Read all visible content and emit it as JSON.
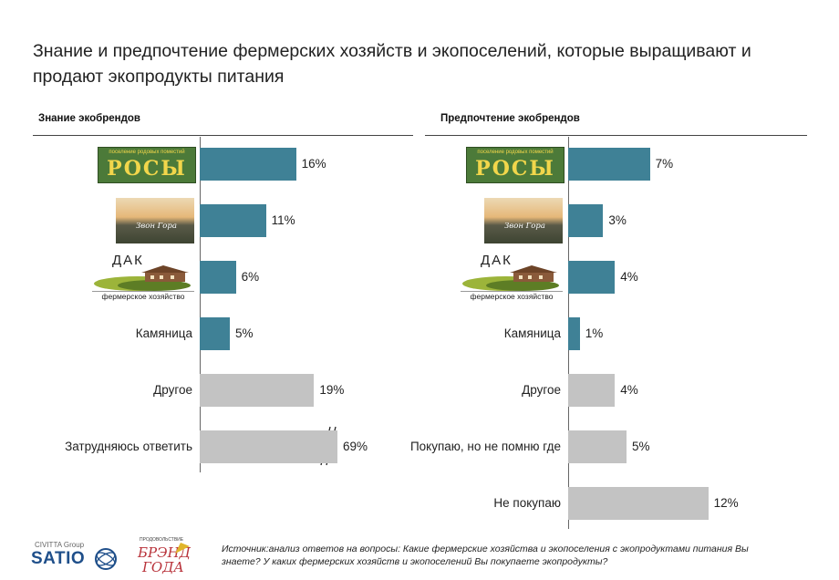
{
  "title": "Знание и предпочтение фермерских хозяйств и экопоселений, которые выращивают и продают экопродукты питания",
  "chart_data": [
    {
      "type": "bar",
      "orientation": "horizontal",
      "title": "Знание экобрендов",
      "categories": [
        "Росы",
        "Звон Гора",
        "ДАК фермерское хозяйство",
        "Камяница",
        "Другое",
        "Затрудняюсь ответить"
      ],
      "values": [
        16,
        11,
        6,
        5,
        19,
        69
      ],
      "unit": "%",
      "value_labels": [
        "16%",
        "11%",
        "6%",
        "5%",
        "19%",
        "69%"
      ],
      "text_labels": [
        "",
        "",
        "",
        "Камяница",
        "Другое",
        "Затрудняюсь ответить"
      ],
      "highlight_colors": [
        "#3f8196",
        "#3f8196",
        "#3f8196",
        "#3f8196",
        "#c3c3c3",
        "#c3c3c3"
      ],
      "axis_break_on_last": true
    },
    {
      "type": "bar",
      "orientation": "horizontal",
      "title": "Предпочтение экобрендов",
      "categories": [
        "Росы",
        "Звон Гора",
        "ДАК фермерское хозяйство",
        "Камяница",
        "Другое",
        "Покупаю, но не помню где",
        "Не покупаю"
      ],
      "values": [
        7,
        3,
        4,
        1,
        4,
        5,
        12
      ],
      "unit": "%",
      "value_labels": [
        "7%",
        "3%",
        "4%",
        "1%",
        "4%",
        "5%",
        "12%"
      ],
      "text_labels": [
        "",
        "",
        "",
        "Камяница",
        "Другое",
        "Покупаю, но не помню где",
        "Не покупаю"
      ],
      "highlight_colors": [
        "#3f8196",
        "#3f8196",
        "#3f8196",
        "#3f8196",
        "#c3c3c3",
        "#c3c3c3",
        "#c3c3c3"
      ]
    }
  ],
  "logos": {
    "rosy_top_text": "поселение родовых поместий",
    "rosy_text": "РОСЫ",
    "zvon_text": "Звон Гора",
    "dak_text": "ДАК",
    "dak_sub": "фермерское хозяйство"
  },
  "footer": {
    "satio_group": "CIVITTA Group",
    "satio_name": "SATIO",
    "brand_small": "ПРОДОВОЛЬСТВИЕ",
    "brand_name_1": "БРЭНД",
    "brand_name_2": "ГОДА",
    "source": "Источник:анализ ответов на вопросы: Какие фермерские хозяйства и экопоселения  с экопродуктами питания Вы знаете? У каких фермерских хозяйств и экопоселений Вы покупаете экопродукты?"
  },
  "colors": {
    "blue": "#3f8196",
    "grey": "#c3c3c3",
    "rosy_bg": "#4c7a39",
    "rosy_text": "#f2d64b"
  }
}
